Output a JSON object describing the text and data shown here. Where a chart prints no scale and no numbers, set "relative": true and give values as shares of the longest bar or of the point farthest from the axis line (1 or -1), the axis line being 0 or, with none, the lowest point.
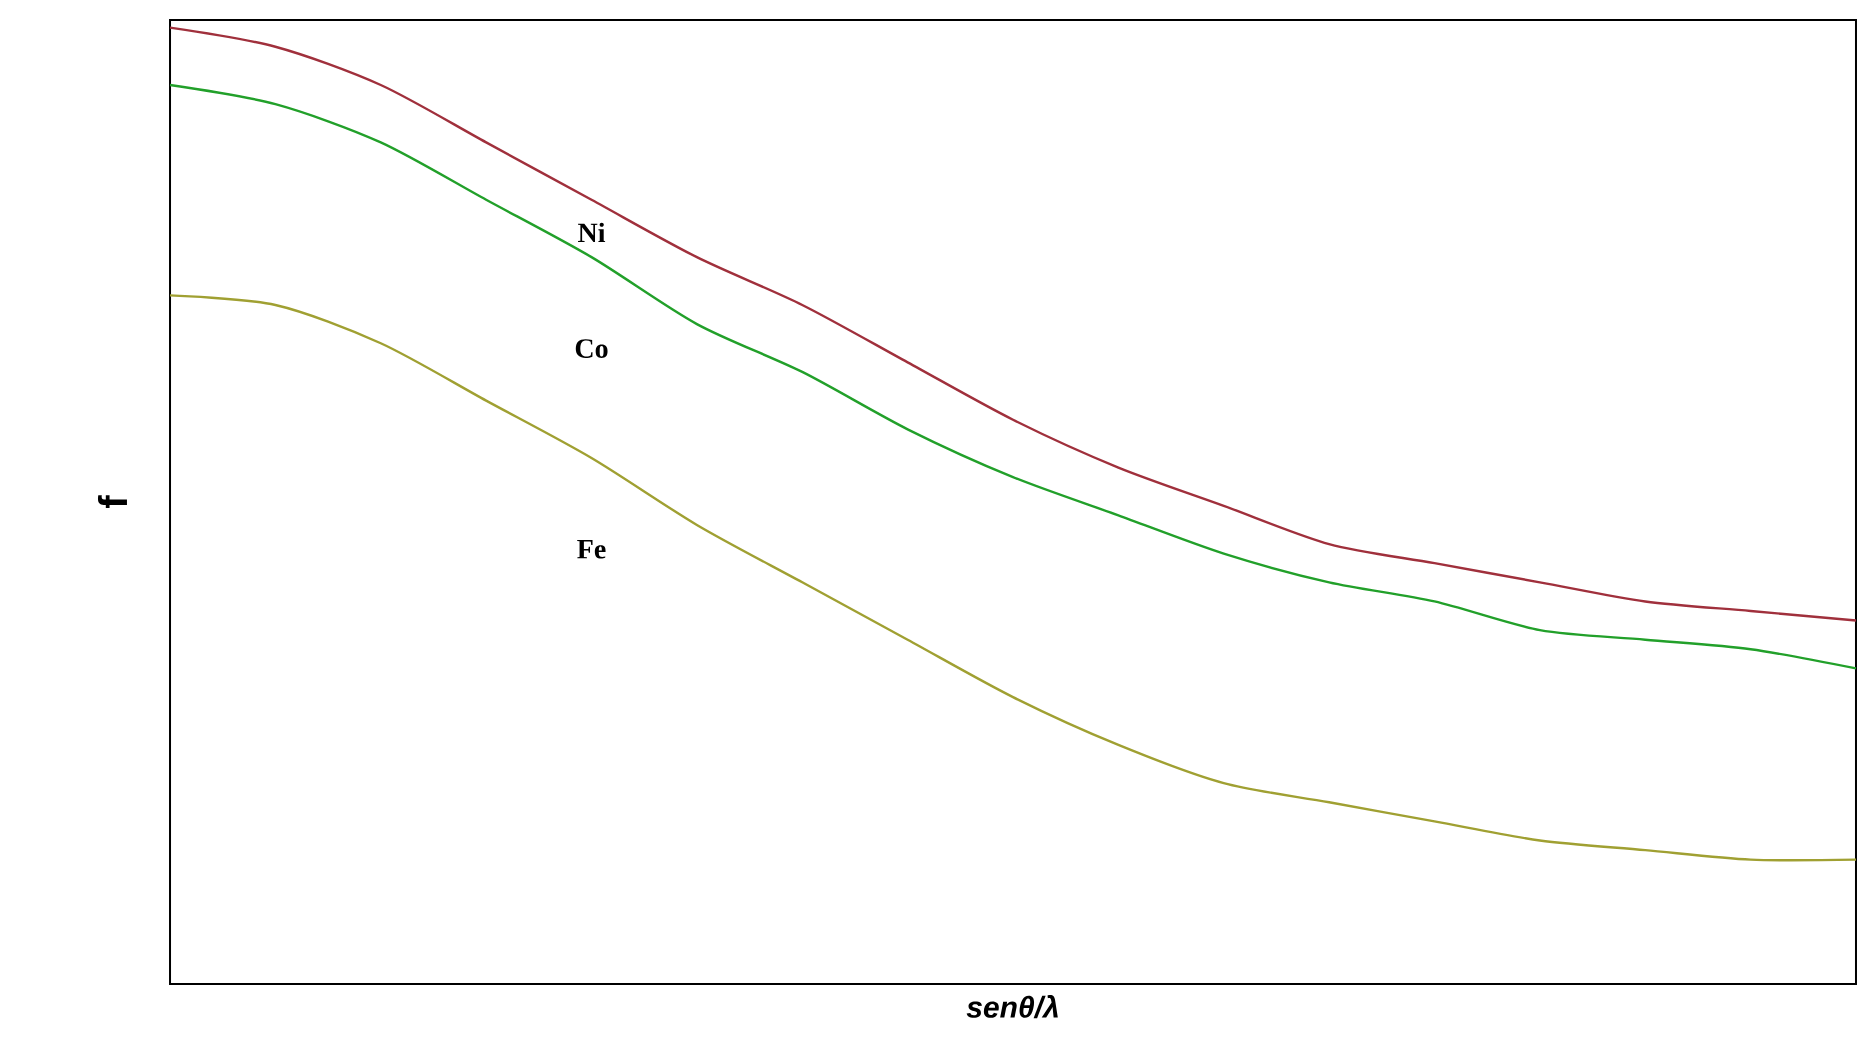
{
  "chart_data": {
    "type": "line",
    "relative": true,
    "xlabel": "senθ/λ",
    "ylabel": "f",
    "categories": [
      null,
      null,
      null,
      null,
      null,
      null,
      null,
      null,
      null,
      null,
      null,
      null,
      null,
      null,
      null,
      null,
      null
    ],
    "series": [
      {
        "name": "Ni",
        "color": "#a0303c",
        "values": [
          1,
          0.98,
          0.94,
          0.88,
          0.82,
          0.76,
          0.71,
          0.65,
          0.59,
          0.54,
          0.5,
          0.46,
          0.44,
          0.42,
          0.4,
          0.39,
          0.38
        ]
      },
      {
        "name": "Co",
        "color": "#22a02a",
        "values": [
          0.94,
          0.92,
          0.88,
          0.82,
          0.76,
          0.69,
          0.64,
          0.58,
          0.53,
          0.49,
          0.45,
          0.42,
          0.4,
          0.37,
          0.36,
          0.35,
          0.33
        ]
      },
      {
        "name": "Fe",
        "color": "#a0a032",
        "values": [
          0.72,
          0.71,
          0.67,
          0.61,
          0.55,
          0.48,
          0.42,
          0.36,
          0.3,
          0.25,
          0.21,
          0.19,
          0.17,
          0.15,
          0.14,
          0.13,
          0.13
        ]
      }
    ]
  }
}
